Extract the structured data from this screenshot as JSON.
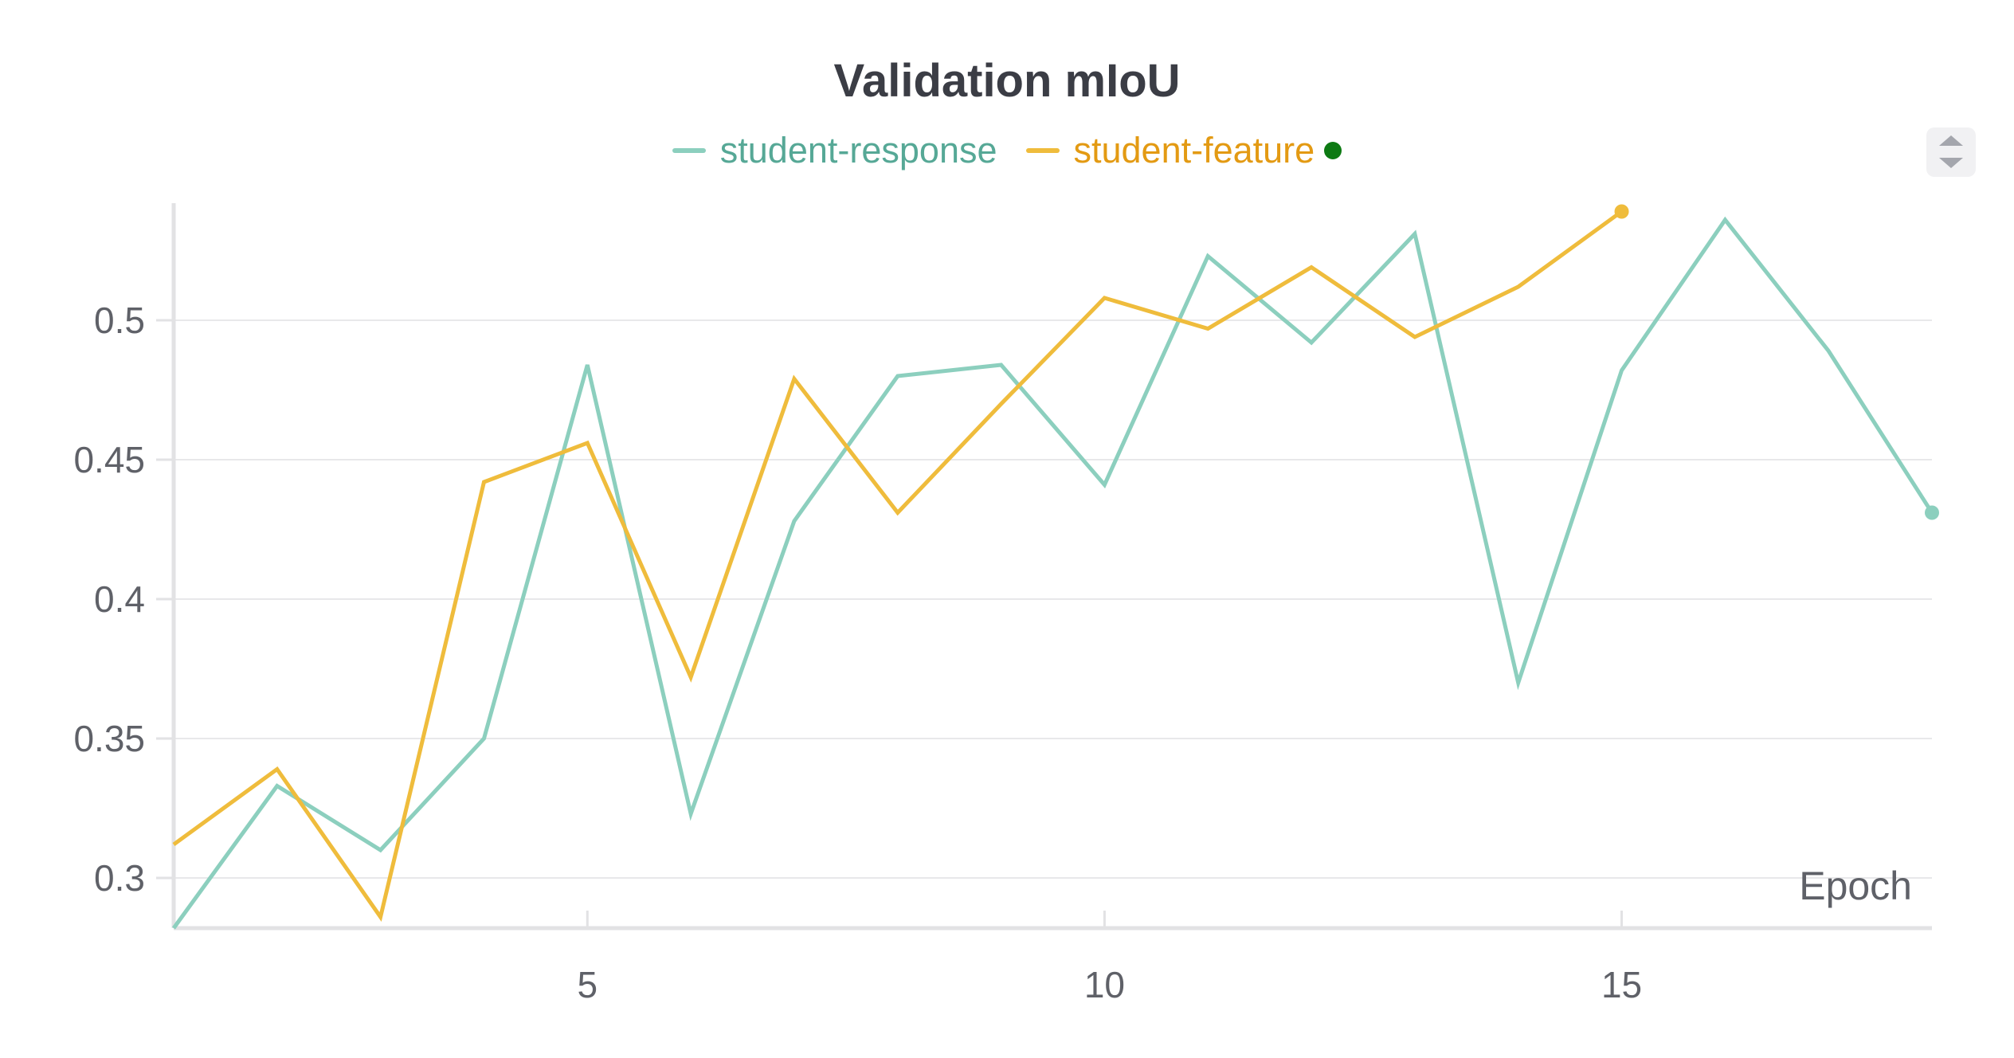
{
  "chart_data": {
    "type": "line",
    "title": "Validation mIoU",
    "xlabel": "Epoch",
    "ylabel": "",
    "xlim": [
      1,
      18
    ],
    "ylim": [
      0.282,
      0.542
    ],
    "x_ticks": [
      5,
      10,
      15
    ],
    "x_tick_labels": [
      "5",
      "10",
      "15"
    ],
    "y_ticks": [
      0.3,
      0.35,
      0.4,
      0.45,
      0.5
    ],
    "y_tick_labels": [
      "0.3",
      "0.35",
      "0.4",
      "0.45",
      "0.5"
    ],
    "grid": true,
    "legend_position": "top-center",
    "series": [
      {
        "name": "student-response",
        "color": "#8ccfbe",
        "label_color": "#56a896",
        "x": [
          1,
          2,
          3,
          4,
          5,
          6,
          7,
          8,
          9,
          10,
          11,
          12,
          13,
          14,
          15,
          16,
          17,
          18
        ],
        "values": [
          0.282,
          0.333,
          0.31,
          0.35,
          0.484,
          0.323,
          0.428,
          0.48,
          0.484,
          0.441,
          0.523,
          0.492,
          0.531,
          0.37,
          0.482,
          0.536,
          0.489,
          0.431
        ]
      },
      {
        "name": "student-feature",
        "color": "#efbc3c",
        "label_color": "#e39a13",
        "indicator_color": "#0d7a13",
        "x": [
          1,
          2,
          3,
          4,
          5,
          6,
          7,
          8,
          9,
          10,
          11,
          12,
          13,
          14,
          15
        ],
        "values": [
          0.312,
          0.339,
          0.286,
          0.442,
          0.456,
          0.372,
          0.479,
          0.431,
          0.47,
          0.508,
          0.497,
          0.519,
          0.494,
          0.512,
          0.539
        ]
      }
    ]
  },
  "controls": {
    "sort_icon": "sort-up-down-icon"
  }
}
